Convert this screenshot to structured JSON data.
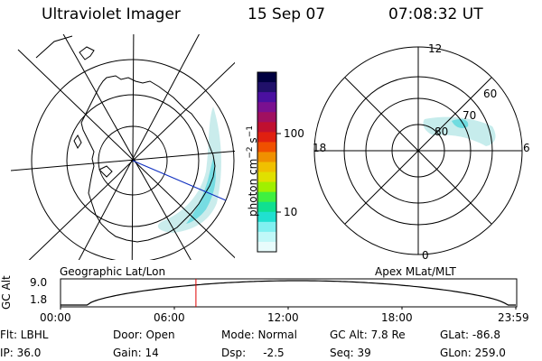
{
  "header": {
    "title": "Ultraviolet Imager",
    "date": "15 Sep 07",
    "time": "07:08:32 UT"
  },
  "colorbar": {
    "unit_label": "photon cm",
    "unit_sup1": "−2",
    "unit_mid": "s",
    "unit_sup2": "−1",
    "ticks": [
      "100",
      "10"
    ],
    "colors": [
      "#000040",
      "#20106a",
      "#4a10a0",
      "#7a1090",
      "#a01060",
      "#c01030",
      "#e02010",
      "#f05000",
      "#f09000",
      "#f0c000",
      "#e0e000",
      "#a0f000",
      "#40f040",
      "#10e090",
      "#20e0d0",
      "#80f0f0",
      "#c0f8f8",
      "#e8fcfc"
    ]
  },
  "left_map": {
    "caption": "Geographic Lat/Lon"
  },
  "right_map": {
    "caption": "Apex MLat/MLT",
    "mlt_labels": {
      "top": "12",
      "right": "6",
      "bottom": "0",
      "left": "18"
    },
    "lat_labels": [
      "80",
      "70",
      "60"
    ]
  },
  "timeline": {
    "ylabel": "GC Alt",
    "ytick_top": "9.0",
    "ytick_bottom": "1.8",
    "xticks": [
      "00:00",
      "06:00",
      "12:00",
      "18:00",
      "23:59"
    ],
    "marker_hour": 7.14,
    "marker_color": "#e00000"
  },
  "info": {
    "flt": "Flt: LBHL",
    "ip": "IP: 36.0",
    "door": "Door: Open",
    "gain": "Gain: 14",
    "mode": "Mode: Normal",
    "dsp": "Dsp:     -2.5",
    "gcalt": "GC Alt: 7.8 Re",
    "seq": "Seq: 39",
    "glat": "GLat: -86.8",
    "glon": "GLon: 259.0"
  }
}
